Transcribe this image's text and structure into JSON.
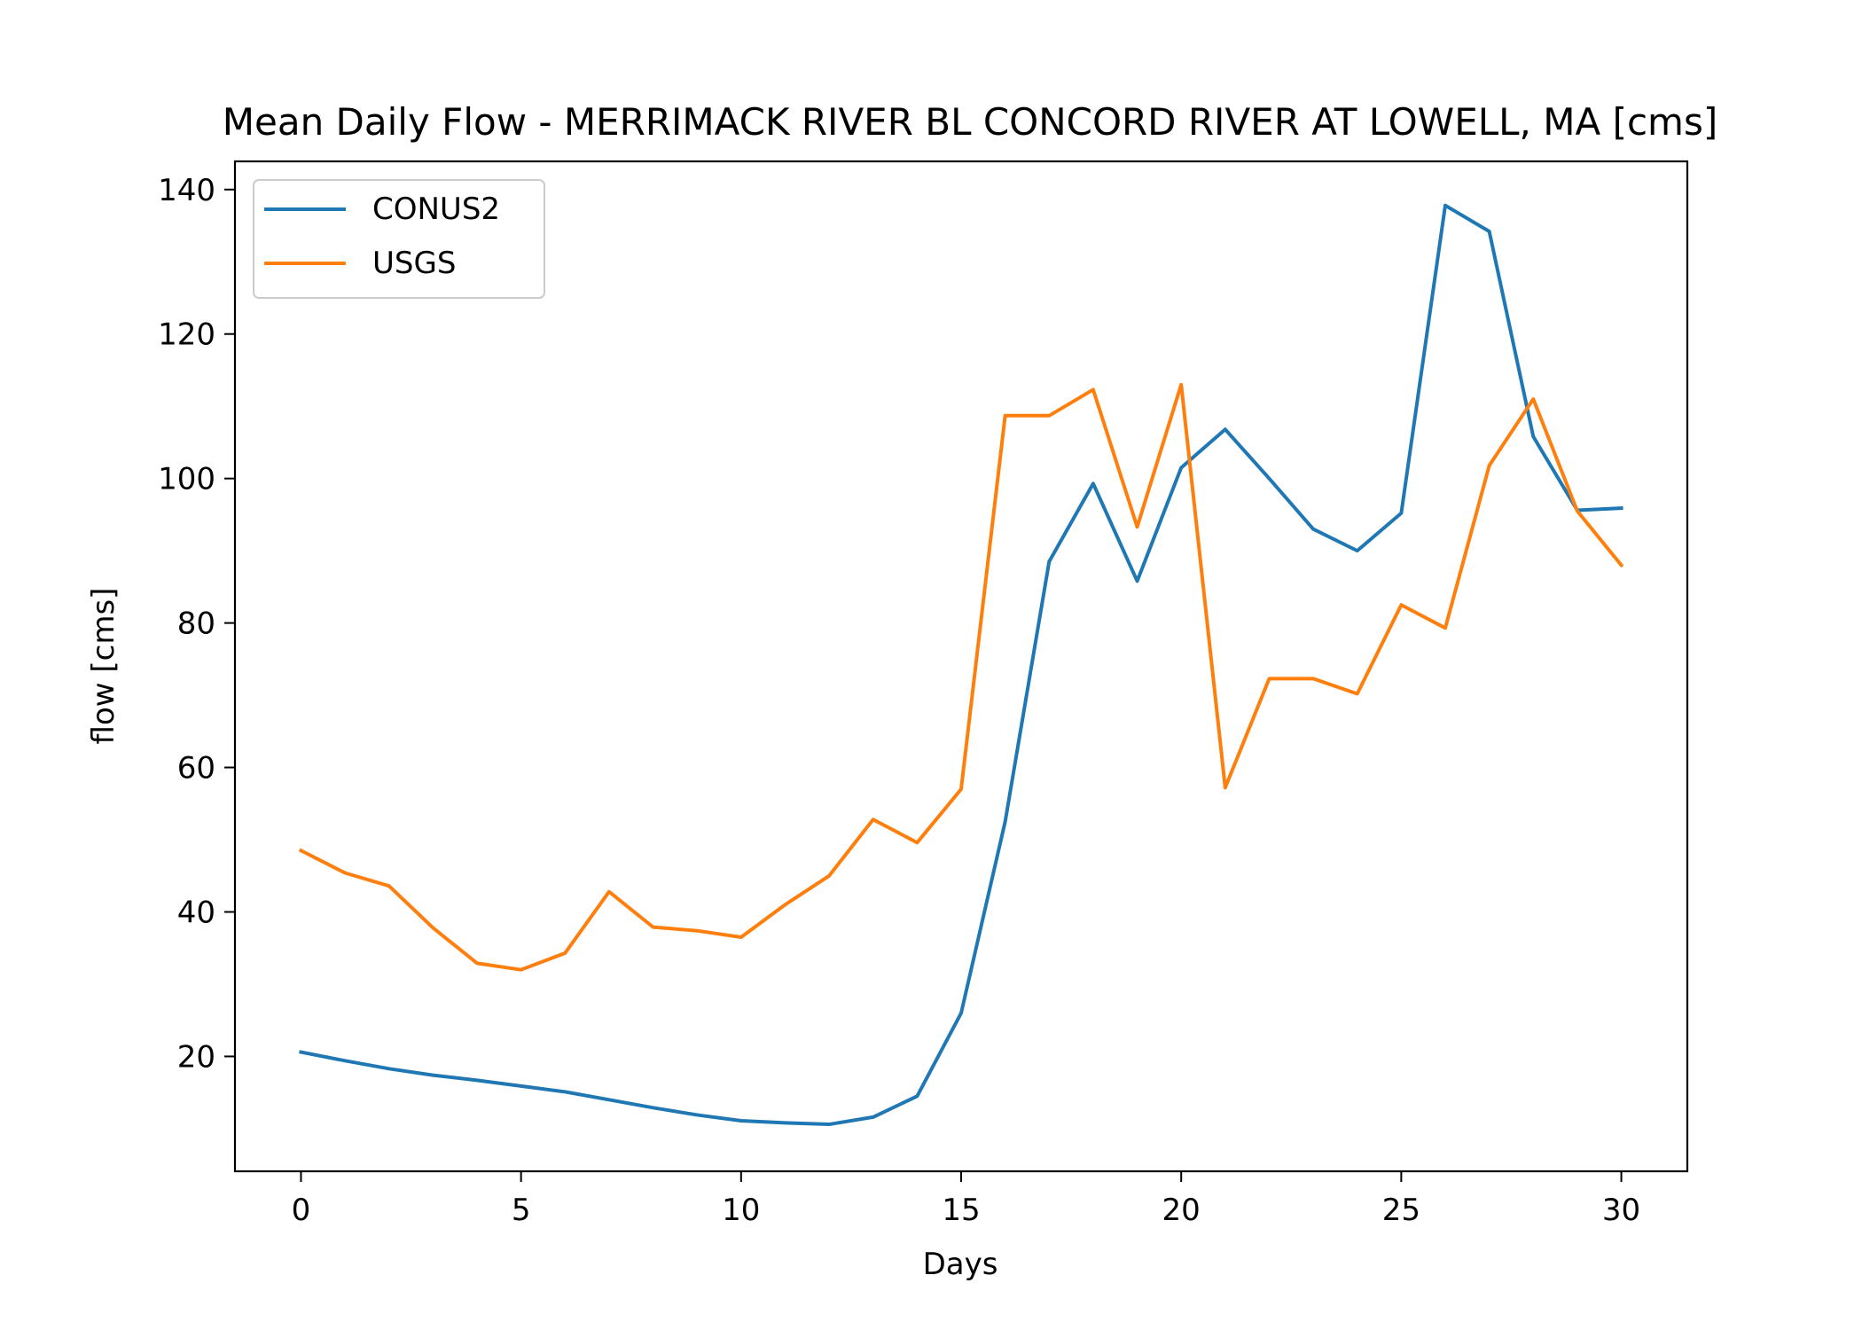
{
  "chart_data": {
    "type": "line",
    "title": "Mean Daily Flow - MERRIMACK RIVER BL CONCORD RIVER AT LOWELL, MA [cms]",
    "xlabel": "Days",
    "ylabel": "flow [cms]",
    "xlim": [
      -1.5,
      31.5
    ],
    "ylim": [
      4.1,
      143.9
    ],
    "xticks": [
      0,
      5,
      10,
      15,
      20,
      25,
      30
    ],
    "yticks": [
      20,
      40,
      60,
      80,
      100,
      120,
      140
    ],
    "grid": false,
    "legend_position": "top-left",
    "x": [
      0,
      1,
      2,
      3,
      4,
      5,
      6,
      7,
      8,
      9,
      10,
      11,
      12,
      13,
      14,
      15,
      16,
      17,
      18,
      19,
      20,
      21,
      22,
      23,
      24,
      25,
      26,
      27,
      28,
      29,
      30
    ],
    "series": [
      {
        "name": "CONUS2",
        "color": "#1f77b4",
        "values": [
          20.6,
          19.4,
          18.3,
          17.4,
          16.7,
          15.9,
          15.1,
          14.0,
          12.9,
          11.9,
          11.1,
          10.8,
          10.6,
          11.6,
          14.5,
          26.0,
          52.5,
          88.5,
          99.3,
          85.8,
          101.5,
          106.8,
          100.0,
          93.0,
          90.0,
          95.2,
          137.8,
          134.2,
          105.8,
          95.6,
          95.9
        ]
      },
      {
        "name": "USGS",
        "color": "#ff7f0e",
        "values": [
          48.5,
          45.4,
          43.6,
          37.8,
          32.9,
          32.0,
          34.3,
          42.8,
          37.9,
          37.4,
          36.5,
          41.0,
          45.0,
          52.8,
          49.6,
          57.0,
          108.7,
          108.7,
          112.3,
          93.3,
          113.0,
          57.2,
          72.3,
          72.3,
          70.2,
          82.5,
          79.3,
          101.8,
          111.0,
          95.5,
          88.0
        ]
      }
    ]
  }
}
